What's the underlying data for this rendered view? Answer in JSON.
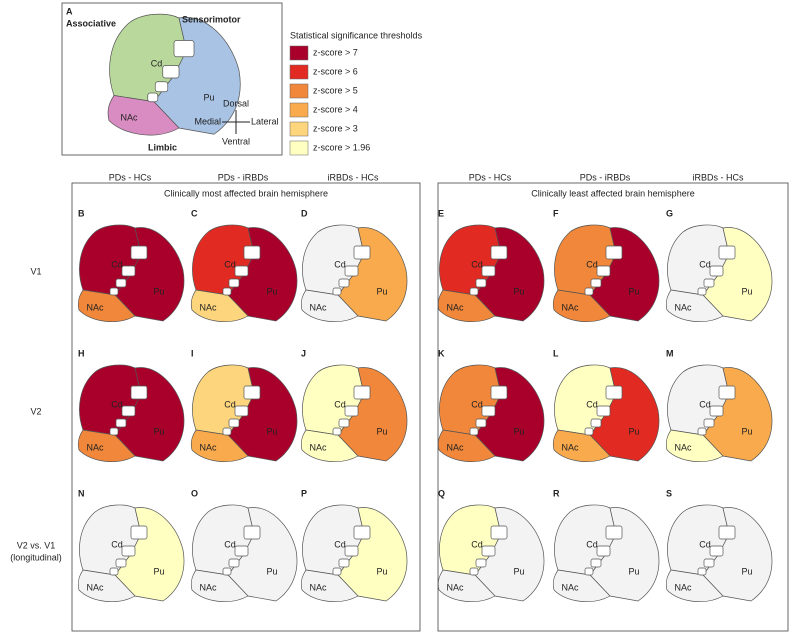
{
  "panel_a": {
    "letter": "A",
    "regions": {
      "associative": "Associative",
      "sensorimotor": "Sensorimotor",
      "limbic": "Limbic"
    },
    "region_colors": {
      "associative": "#b9d99c",
      "sensorimotor": "#a8c3e3",
      "limbic": "#d98cc1"
    },
    "structures": {
      "cd": "Cd",
      "pu": "Pu",
      "nac": "NAc"
    },
    "directions": {
      "dorsal": "Dorsal",
      "ventral": "Ventral",
      "medial": "Medial",
      "lateral": "Lateral"
    }
  },
  "legend": {
    "title": "Statistical significance thresholds",
    "items": [
      {
        "label": "z-score > 7",
        "color": "#a8002a"
      },
      {
        "label": "z-score > 6",
        "color": "#e02a22"
      },
      {
        "label": "z-score > 5",
        "color": "#f0873a"
      },
      {
        "label": "z-score > 4",
        "color": "#f9aa4c"
      },
      {
        "label": "z-score > 3",
        "color": "#fdd57c"
      },
      {
        "label": "z-score > 1.96",
        "color": "#ffffc2"
      }
    ],
    "none_color": "#f3f3f3"
  },
  "hemispheres": [
    "Clinically most affected brain hemisphere",
    "Clinically least affected brain hemisphere"
  ],
  "columns": [
    "PDs - HCs",
    "PDs - iRBDs",
    "iRBDs - HCs",
    "PDs - HCs",
    "PDs - iRBDs",
    "iRBDs - HCs"
  ],
  "rows": [
    [
      "V1"
    ],
    [
      "V2"
    ],
    [
      "V2 vs. V1",
      "(longitudinal)"
    ]
  ],
  "panels": [
    [
      {
        "letter": "B",
        "levels": [
          0,
          0,
          2
        ]
      },
      {
        "letter": "C",
        "levels": [
          1,
          0,
          4
        ]
      },
      {
        "letter": "D",
        "levels": [
          null,
          3,
          null
        ]
      },
      {
        "letter": "E",
        "levels": [
          1,
          0,
          2
        ]
      },
      {
        "letter": "F",
        "levels": [
          2,
          0,
          2
        ]
      },
      {
        "letter": "G",
        "levels": [
          null,
          5,
          null
        ]
      }
    ],
    [
      {
        "letter": "H",
        "levels": [
          0,
          0,
          2
        ]
      },
      {
        "letter": "I",
        "levels": [
          4,
          0,
          3
        ]
      },
      {
        "letter": "J",
        "levels": [
          5,
          2,
          5
        ]
      },
      {
        "letter": "K",
        "levels": [
          2,
          0,
          2
        ]
      },
      {
        "letter": "L",
        "levels": [
          5,
          1,
          3
        ]
      },
      {
        "letter": "M",
        "levels": [
          null,
          3,
          5
        ]
      }
    ],
    [
      {
        "letter": "N",
        "levels": [
          null,
          5,
          null
        ]
      },
      {
        "letter": "O",
        "levels": [
          null,
          null,
          null
        ]
      },
      {
        "letter": "P",
        "levels": [
          null,
          5,
          null
        ]
      },
      {
        "letter": "Q",
        "levels": [
          5,
          null,
          null
        ]
      },
      {
        "letter": "R",
        "levels": [
          null,
          null,
          null
        ]
      },
      {
        "letter": "S",
        "levels": [
          null,
          null,
          null
        ]
      }
    ]
  ]
}
